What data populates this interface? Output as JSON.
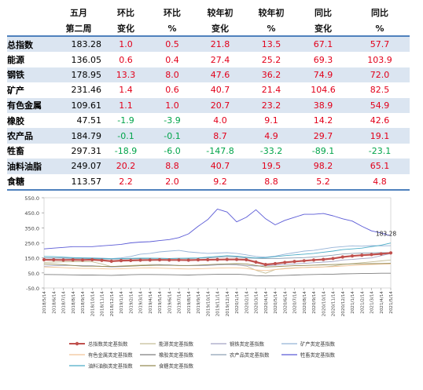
{
  "table": {
    "headers_row1": [
      "",
      "五月",
      "环比",
      "环比",
      "较年初",
      "较年初",
      "同比",
      "同比"
    ],
    "headers_row2": [
      "",
      "第二周",
      "变化",
      "%",
      "变化",
      "%",
      "变化",
      "%"
    ],
    "rows": [
      {
        "name": "总指数",
        "value": "183.28",
        "mom": "1.0",
        "mom_pct": "0.5",
        "ytd": "21.8",
        "ytd_pct": "13.5",
        "yoy": "67.1",
        "yoy_pct": "57.7"
      },
      {
        "name": "能源",
        "value": "136.05",
        "mom": "0.6",
        "mom_pct": "0.4",
        "ytd": "27.4",
        "ytd_pct": "25.2",
        "yoy": "69.3",
        "yoy_pct": "103.9"
      },
      {
        "name": "钢铁",
        "value": "178.95",
        "mom": "13.3",
        "mom_pct": "8.0",
        "ytd": "47.6",
        "ytd_pct": "36.2",
        "yoy": "74.9",
        "yoy_pct": "72.0"
      },
      {
        "name": "矿产",
        "value": "231.46",
        "mom": "1.4",
        "mom_pct": "0.6",
        "ytd": "40.7",
        "ytd_pct": "21.4",
        "yoy": "104.6",
        "yoy_pct": "82.5"
      },
      {
        "name": "有色金属",
        "value": "109.61",
        "mom": "1.1",
        "mom_pct": "1.0",
        "ytd": "20.7",
        "ytd_pct": "23.2",
        "yoy": "38.9",
        "yoy_pct": "54.9"
      },
      {
        "name": "橡胶",
        "value": "47.51",
        "mom": "-1.9",
        "mom_pct": "-3.9",
        "ytd": "4.0",
        "ytd_pct": "9.1",
        "yoy": "14.2",
        "yoy_pct": "42.6"
      },
      {
        "name": "农产品",
        "value": "184.79",
        "mom": "-0.1",
        "mom_pct": "-0.1",
        "ytd": "8.7",
        "ytd_pct": "4.9",
        "yoy": "29.7",
        "yoy_pct": "19.1"
      },
      {
        "name": "牲畜",
        "value": "297.31",
        "mom": "-18.9",
        "mom_pct": "-6.0",
        "ytd": "-147.8",
        "ytd_pct": "-33.2",
        "yoy": "-89.1",
        "yoy_pct": "-23.1"
      },
      {
        "name": "油料油脂",
        "value": "249.07",
        "mom": "20.2",
        "mom_pct": "8.8",
        "ytd": "40.7",
        "ytd_pct": "19.5",
        "yoy": "98.2",
        "yoy_pct": "65.1"
      },
      {
        "name": "食糖",
        "value": "113.57",
        "mom": "2.2",
        "mom_pct": "2.0",
        "ytd": "9.2",
        "ytd_pct": "8.8",
        "yoy": "5.2",
        "yoy_pct": "4.8"
      }
    ]
  },
  "colors": {
    "positive": "#e2001a",
    "negative": "#00a44a",
    "row_shade": "#dbe5f1",
    "rule": "#4f81bd"
  },
  "chart_data": {
    "type": "line",
    "x": [
      "2018/5/14",
      "2018/6/14",
      "2018/7/14",
      "2018/8/14",
      "2018/9/14",
      "2018/10/14",
      "2018/11/14",
      "2018/12/14",
      "2019/1/14",
      "2019/2/14",
      "2019/3/14",
      "2019/4/14",
      "2019/5/14",
      "2019/6/14",
      "2019/7/14",
      "2019/8/14",
      "2019/9/14",
      "2019/10/14",
      "2019/11/14",
      "2019/12/14",
      "2020/1/14",
      "2020/2/14",
      "2020/3/14",
      "2020/4/14",
      "2020/5/14",
      "2020/6/14",
      "2020/7/14",
      "2020/8/14",
      "2020/9/14",
      "2020/10/14",
      "2020/11/14",
      "2020/12/14",
      "2021/1/14",
      "2021/2/14",
      "2021/3/14",
      "2021/4/14",
      "2021/5/14"
    ],
    "ylim": [
      -50,
      550
    ],
    "yticks": [
      "-50.0",
      "50.0",
      "150.0",
      "250.0",
      "350.0",
      "450.0",
      "550.0"
    ],
    "end_label": "183.28",
    "series": [
      {
        "name": "总指数类定基指数",
        "color": "#c0504d",
        "marker": true,
        "values": [
          138,
          137,
          136,
          137,
          136,
          138,
          134,
          128,
          132,
          133,
          135,
          136,
          137,
          136,
          136,
          135,
          137,
          138,
          139,
          140,
          140,
          138,
          122,
          106,
          112,
          120,
          126,
          131,
          136,
          140,
          146,
          156,
          163,
          168,
          172,
          177,
          183.28
        ]
      },
      {
        "name": "能源类定基指数",
        "color": "#c4bd97",
        "values": [
          120,
          122,
          124,
          125,
          126,
          124,
          110,
          92,
          96,
          100,
          103,
          106,
          106,
          102,
          100,
          98,
          100,
          102,
          104,
          106,
          104,
          96,
          68,
          48,
          72,
          80,
          84,
          86,
          88,
          90,
          96,
          106,
          112,
          118,
          124,
          130,
          136
        ]
      },
      {
        "name": "钢铁类定基指数",
        "color": "#a5a5c4",
        "values": [
          95,
          98,
          100,
          100,
          100,
          98,
          94,
          90,
          92,
          95,
          98,
          102,
          105,
          104,
          100,
          98,
          98,
          100,
          104,
          106,
          104,
          100,
          96,
          98,
          102,
          106,
          110,
          114,
          118,
          122,
          126,
          136,
          140,
          145,
          150,
          165,
          179
        ]
      },
      {
        "name": "矿产类定基指数",
        "color": "#95b3d7",
        "values": [
          150,
          148,
          150,
          152,
          150,
          150,
          148,
          145,
          150,
          160,
          175,
          180,
          190,
          195,
          200,
          190,
          185,
          180,
          182,
          185,
          180,
          170,
          160,
          155,
          162,
          175,
          185,
          195,
          200,
          210,
          220,
          225,
          230,
          228,
          232,
          230,
          231
        ]
      },
      {
        "name": "有色金属类定基指数",
        "color": "#f2c496",
        "values": [
          90,
          88,
          85,
          82,
          80,
          80,
          78,
          76,
          78,
          80,
          82,
          84,
          82,
          80,
          78,
          76,
          78,
          80,
          82,
          84,
          84,
          80,
          70,
          66,
          72,
          78,
          82,
          86,
          88,
          90,
          92,
          96,
          100,
          104,
          106,
          108,
          110
        ]
      },
      {
        "name": "橡胶类定基指数",
        "color": "#7f7f7f",
        "values": [
          40,
          39,
          38,
          37,
          36,
          36,
          35,
          34,
          36,
          38,
          40,
          40,
          39,
          38,
          37,
          36,
          38,
          40,
          41,
          42,
          42,
          38,
          32,
          30,
          32,
          34,
          36,
          38,
          40,
          41,
          42,
          44,
          45,
          46,
          47,
          48,
          48
        ]
      },
      {
        "name": "农产品类定基指数",
        "color": "#8da0b3",
        "values": [
          150,
          150,
          148,
          146,
          145,
          145,
          143,
          142,
          143,
          144,
          145,
          146,
          147,
          146,
          147,
          146,
          148,
          150,
          154,
          158,
          156,
          150,
          147,
          145,
          145,
          148,
          150,
          152,
          156,
          162,
          168,
          176,
          180,
          182,
          184,
          185,
          185
        ]
      },
      {
        "name": "牲畜类定基指数",
        "color": "#5b5bd6",
        "values": [
          210,
          215,
          220,
          225,
          225,
          225,
          230,
          235,
          240,
          250,
          255,
          258,
          265,
          272,
          285,
          310,
          360,
          405,
          475,
          455,
          390,
          420,
          470,
          410,
          370,
          400,
          420,
          440,
          440,
          445,
          430,
          410,
          395,
          360,
          330,
          316,
          297
        ]
      },
      {
        "name": "油料油脂类定基指数",
        "color": "#4bacc6",
        "values": [
          160,
          158,
          155,
          152,
          150,
          148,
          146,
          144,
          145,
          147,
          148,
          148,
          147,
          146,
          147,
          148,
          150,
          155,
          160,
          165,
          162,
          155,
          150,
          152,
          158,
          165,
          170,
          175,
          180,
          188,
          195,
          205,
          210,
          215,
          225,
          235,
          249
        ]
      },
      {
        "name": "食糖类定基指数",
        "color": "#948a54",
        "values": [
          110,
          108,
          105,
          100,
          95,
          95,
          94,
          93,
          95,
          96,
          98,
          100,
          102,
          101,
          100,
          100,
          102,
          105,
          108,
          110,
          112,
          110,
          100,
          90,
          92,
          95,
          98,
          100,
          102,
          104,
          106,
          108,
          110,
          111,
          112,
          113,
          114
        ]
      }
    ]
  }
}
